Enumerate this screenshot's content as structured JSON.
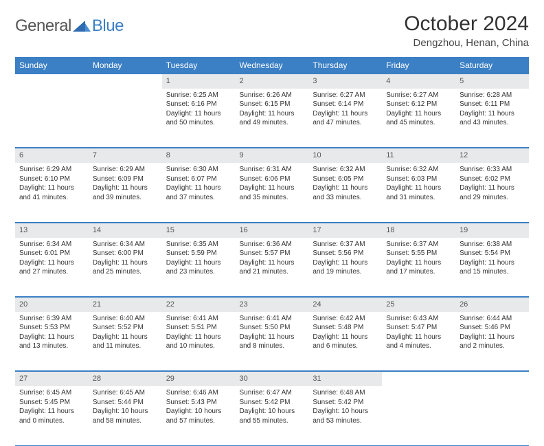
{
  "logo": {
    "part1": "General",
    "part2": "Blue"
  },
  "title": "October 2024",
  "location": "Dengzhou, Henan, China",
  "colors": {
    "header_bg": "#3b7fc4",
    "daynum_bg": "#e8e9ea",
    "border": "#3b7fc4",
    "text": "#333333"
  },
  "weekdays": [
    "Sunday",
    "Monday",
    "Tuesday",
    "Wednesday",
    "Thursday",
    "Friday",
    "Saturday"
  ],
  "weeks": [
    [
      null,
      null,
      {
        "n": "1",
        "sr": "6:25 AM",
        "ss": "6:16 PM",
        "dl": "11 hours and 50 minutes."
      },
      {
        "n": "2",
        "sr": "6:26 AM",
        "ss": "6:15 PM",
        "dl": "11 hours and 49 minutes."
      },
      {
        "n": "3",
        "sr": "6:27 AM",
        "ss": "6:14 PM",
        "dl": "11 hours and 47 minutes."
      },
      {
        "n": "4",
        "sr": "6:27 AM",
        "ss": "6:12 PM",
        "dl": "11 hours and 45 minutes."
      },
      {
        "n": "5",
        "sr": "6:28 AM",
        "ss": "6:11 PM",
        "dl": "11 hours and 43 minutes."
      }
    ],
    [
      {
        "n": "6",
        "sr": "6:29 AM",
        "ss": "6:10 PM",
        "dl": "11 hours and 41 minutes."
      },
      {
        "n": "7",
        "sr": "6:29 AM",
        "ss": "6:09 PM",
        "dl": "11 hours and 39 minutes."
      },
      {
        "n": "8",
        "sr": "6:30 AM",
        "ss": "6:07 PM",
        "dl": "11 hours and 37 minutes."
      },
      {
        "n": "9",
        "sr": "6:31 AM",
        "ss": "6:06 PM",
        "dl": "11 hours and 35 minutes."
      },
      {
        "n": "10",
        "sr": "6:32 AM",
        "ss": "6:05 PM",
        "dl": "11 hours and 33 minutes."
      },
      {
        "n": "11",
        "sr": "6:32 AM",
        "ss": "6:03 PM",
        "dl": "11 hours and 31 minutes."
      },
      {
        "n": "12",
        "sr": "6:33 AM",
        "ss": "6:02 PM",
        "dl": "11 hours and 29 minutes."
      }
    ],
    [
      {
        "n": "13",
        "sr": "6:34 AM",
        "ss": "6:01 PM",
        "dl": "11 hours and 27 minutes."
      },
      {
        "n": "14",
        "sr": "6:34 AM",
        "ss": "6:00 PM",
        "dl": "11 hours and 25 minutes."
      },
      {
        "n": "15",
        "sr": "6:35 AM",
        "ss": "5:59 PM",
        "dl": "11 hours and 23 minutes."
      },
      {
        "n": "16",
        "sr": "6:36 AM",
        "ss": "5:57 PM",
        "dl": "11 hours and 21 minutes."
      },
      {
        "n": "17",
        "sr": "6:37 AM",
        "ss": "5:56 PM",
        "dl": "11 hours and 19 minutes."
      },
      {
        "n": "18",
        "sr": "6:37 AM",
        "ss": "5:55 PM",
        "dl": "11 hours and 17 minutes."
      },
      {
        "n": "19",
        "sr": "6:38 AM",
        "ss": "5:54 PM",
        "dl": "11 hours and 15 minutes."
      }
    ],
    [
      {
        "n": "20",
        "sr": "6:39 AM",
        "ss": "5:53 PM",
        "dl": "11 hours and 13 minutes."
      },
      {
        "n": "21",
        "sr": "6:40 AM",
        "ss": "5:52 PM",
        "dl": "11 hours and 11 minutes."
      },
      {
        "n": "22",
        "sr": "6:41 AM",
        "ss": "5:51 PM",
        "dl": "11 hours and 10 minutes."
      },
      {
        "n": "23",
        "sr": "6:41 AM",
        "ss": "5:50 PM",
        "dl": "11 hours and 8 minutes."
      },
      {
        "n": "24",
        "sr": "6:42 AM",
        "ss": "5:48 PM",
        "dl": "11 hours and 6 minutes."
      },
      {
        "n": "25",
        "sr": "6:43 AM",
        "ss": "5:47 PM",
        "dl": "11 hours and 4 minutes."
      },
      {
        "n": "26",
        "sr": "6:44 AM",
        "ss": "5:46 PM",
        "dl": "11 hours and 2 minutes."
      }
    ],
    [
      {
        "n": "27",
        "sr": "6:45 AM",
        "ss": "5:45 PM",
        "dl": "11 hours and 0 minutes."
      },
      {
        "n": "28",
        "sr": "6:45 AM",
        "ss": "5:44 PM",
        "dl": "10 hours and 58 minutes."
      },
      {
        "n": "29",
        "sr": "6:46 AM",
        "ss": "5:43 PM",
        "dl": "10 hours and 57 minutes."
      },
      {
        "n": "30",
        "sr": "6:47 AM",
        "ss": "5:42 PM",
        "dl": "10 hours and 55 minutes."
      },
      {
        "n": "31",
        "sr": "6:48 AM",
        "ss": "5:42 PM",
        "dl": "10 hours and 53 minutes."
      },
      null,
      null
    ]
  ]
}
